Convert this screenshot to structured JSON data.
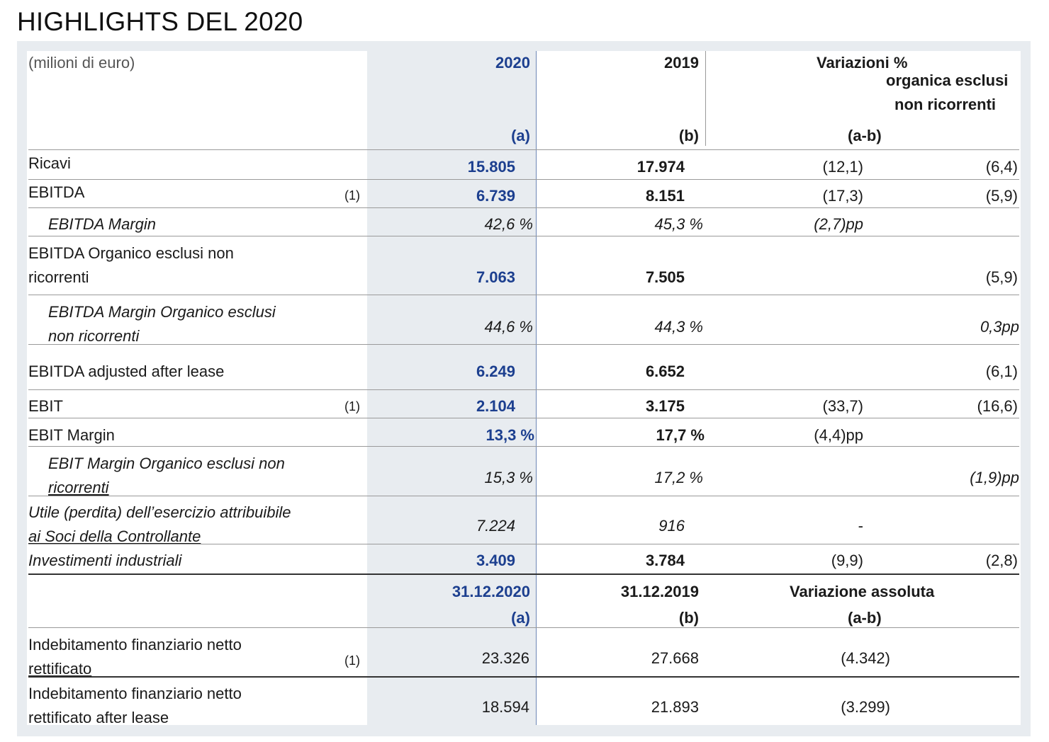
{
  "title": "HIGHLIGHTS DEL 2020",
  "header": {
    "unit": "(milioni di euro)",
    "y2020": "2020",
    "y2019": "2019",
    "var_pct": "Variazioni %",
    "var_org": "organica esclusi",
    "var_org2": "non ricorrenti",
    "a": "(a)",
    "b": "(b)",
    "ab": "(a-b)"
  },
  "rows": [
    {
      "label": "Ricavi",
      "note": "",
      "v2020": "15.805",
      "v2019": "17.974",
      "var": "(12,1)",
      "org": "(6,4)"
    },
    {
      "label": "EBITDA",
      "note": "(1)",
      "v2020": "6.739",
      "v2019": "8.151",
      "var": "(17,3)",
      "org": "(5,9)"
    },
    {
      "label": "EBITDA Margin",
      "note": "",
      "v2020": "42,6 %",
      "v2019": "45,3 %",
      "var": "(2,7)pp",
      "org": ""
    },
    {
      "label": "EBITDA Organico esclusi non",
      "label2": "ricorrenti",
      "note": "",
      "v2020": "7.063",
      "v2019": "7.505",
      "var": "",
      "org": "(5,9)"
    },
    {
      "label": "EBITDA Margin Organico esclusi",
      "label2": "non ricorrenti",
      "note": "",
      "v2020": "44,6 %",
      "v2019": "44,3 %",
      "var": "",
      "org": "0,3pp"
    },
    {
      "label": "EBITDA adjusted after lease",
      "note": "",
      "v2020": "6.249",
      "v2019": "6.652",
      "var": "",
      "org": "(6,1)"
    },
    {
      "label": "EBIT",
      "note": "(1)",
      "v2020": "2.104",
      "v2019": "3.175",
      "var": "(33,7)",
      "org": "(16,6)"
    },
    {
      "label": "EBIT Margin",
      "note": "",
      "v2020": "13,3 %",
      "v2019": "17,7 %",
      "var": "(4,4)pp",
      "org": ""
    },
    {
      "label": "EBIT Margin Organico esclusi non",
      "label2": "ricorrenti",
      "note": "",
      "v2020": "15,3 %",
      "v2019": "17,2 %",
      "var": "",
      "org": "(1,9)pp"
    },
    {
      "label": "Utile (perdita) dell’esercizio attribuibile",
      "label2": "ai Soci della Controllante",
      "note": "",
      "v2020": "7.224",
      "v2019": "916",
      "var": "-",
      "org": ""
    },
    {
      "label": "Investimenti industriali",
      "note": "",
      "v2020": "3.409",
      "v2019": "3.784",
      "var": "(9,9)",
      "org": "(2,8)"
    }
  ],
  "header2": {
    "d2020": "31.12.2020",
    "d2019": "31.12.2019",
    "var_abs": "Variazione assoluta",
    "a": "(a)",
    "b": "(b)",
    "ab": "(a-b)"
  },
  "rows2": [
    {
      "label": "Indebitamento finanziario netto",
      "label2": "rettificato",
      "note": "(1)",
      "v2020": "23.326",
      "v2019": "27.668",
      "var": "(4.342)"
    },
    {
      "label": "Indebitamento finanziario netto",
      "label2": "rettificato after lease",
      "note": "",
      "v2020": "18.594",
      "v2019": "21.893",
      "var": "(3.299)"
    }
  ]
}
